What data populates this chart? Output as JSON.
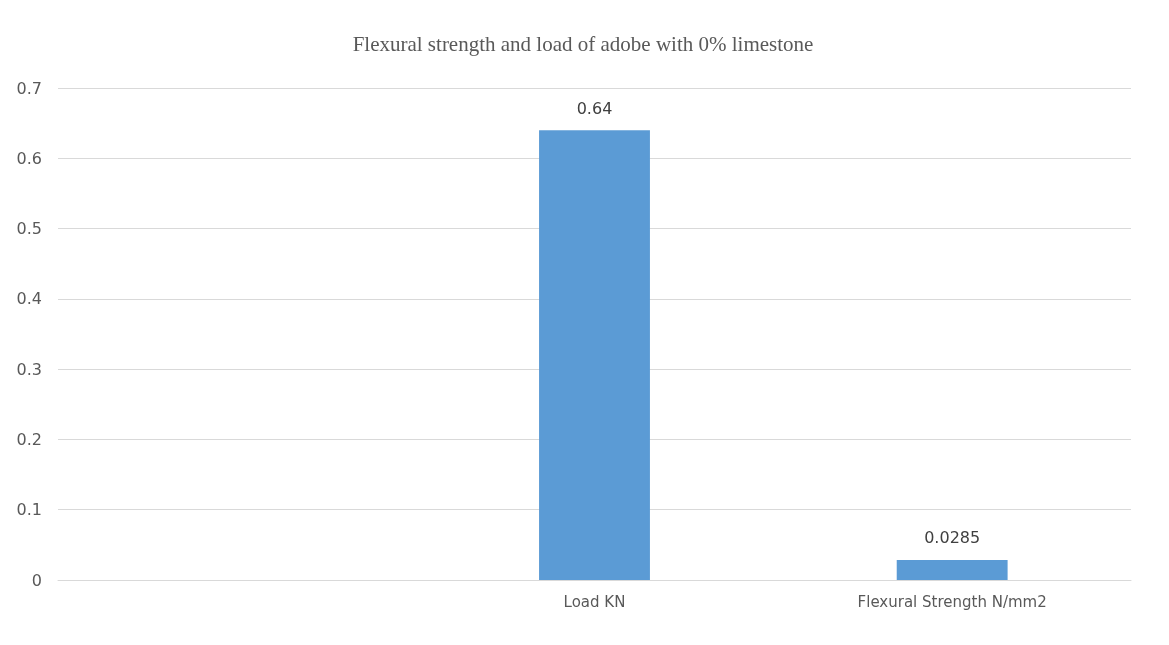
{
  "chart_data": {
    "type": "bar",
    "title": "Flexural strength and load of adobe with 0% limestone",
    "categories": [
      null,
      "Load KN",
      "Flexural Strength N/mm2"
    ],
    "values": [
      null,
      0.64,
      0.0285
    ],
    "color": "#5b9bd5",
    "ylim": [
      0,
      0.7
    ],
    "yticks": [
      0,
      0.1,
      0.2,
      0.3,
      0.4,
      0.5,
      0.6,
      0.7
    ],
    "grid": "y",
    "data_labels": true
  }
}
